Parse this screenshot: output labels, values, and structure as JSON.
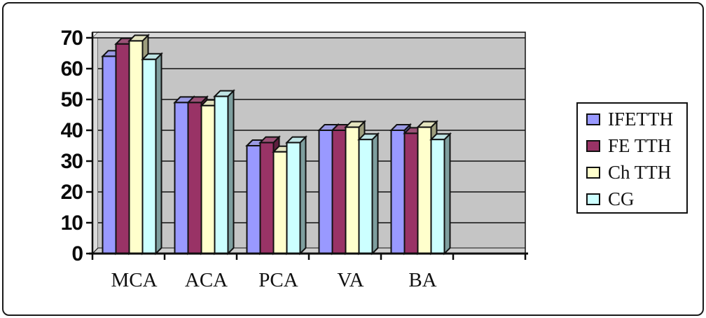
{
  "figure": {
    "background": "#ffffff",
    "border_color": "#1a1a1a"
  },
  "chart_data": {
    "type": "bar",
    "style": "3d-column",
    "title": "",
    "xlabel": "",
    "ylabel": "",
    "categories": [
      "MCA",
      "ACA",
      "PCA",
      "VA",
      "BA"
    ],
    "series": [
      {
        "name": "IFETTH",
        "color": "#9999FF",
        "values": [
          64,
          49,
          35,
          40,
          40
        ]
      },
      {
        "name": "FE TTH",
        "color": "#993366",
        "values": [
          68,
          49,
          36,
          40,
          39
        ]
      },
      {
        "name": "Ch TTH",
        "color": "#FFFFCC",
        "values": [
          69,
          48,
          33,
          41,
          41
        ]
      },
      {
        "name": "CG",
        "color": "#CCFFFF",
        "values": [
          63,
          51,
          36,
          37,
          37
        ]
      }
    ],
    "ylim": [
      0,
      70
    ],
    "yticks": [
      0,
      10,
      20,
      30,
      40,
      50,
      60,
      70
    ],
    "grid": true,
    "gridline_color": "#111111",
    "plot_background": "#C5C5C5",
    "wall_color": "#DADADA",
    "floor_color": "#D0D0D0",
    "bar_outline_color": "#111111",
    "legend_position": "right",
    "extra_empty_category_slots": 1
  }
}
